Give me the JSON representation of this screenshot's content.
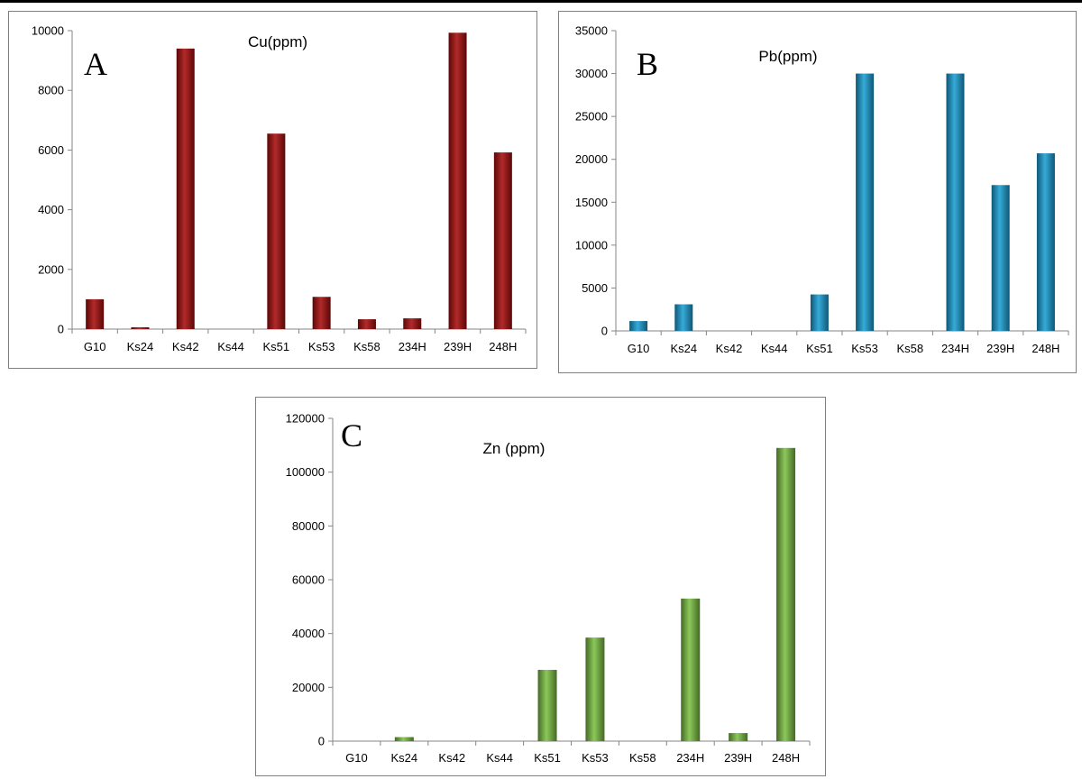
{
  "chart_data": [
    {
      "type": "bar",
      "panel_label": "A",
      "title": "Cu(ppm)",
      "categories": [
        "G10",
        "Ks24",
        "Ks42",
        "Ks44",
        "Ks51",
        "Ks53",
        "Ks58",
        "234H",
        "239H",
        "248H"
      ],
      "values": [
        1000,
        60,
        9400,
        0,
        6550,
        1080,
        330,
        360,
        9930,
        5920
      ],
      "ylim": [
        0,
        10000
      ],
      "yticks": [
        0,
        2000,
        4000,
        6000,
        8000,
        10000
      ],
      "grid": false,
      "legend": "none",
      "color": "#a80d0d"
    },
    {
      "type": "bar",
      "panel_label": "B",
      "title": "Pb(ppm)",
      "categories": [
        "G10",
        "Ks24",
        "Ks42",
        "Ks44",
        "Ks51",
        "Ks53",
        "Ks58",
        "234H",
        "239H",
        "248H"
      ],
      "values": [
        1150,
        3100,
        0,
        0,
        4250,
        30000,
        0,
        30000,
        17000,
        20700
      ],
      "ylim": [
        0,
        35000
      ],
      "yticks": [
        0,
        5000,
        10000,
        15000,
        20000,
        25000,
        30000,
        35000
      ],
      "grid": false,
      "legend": "none",
      "color": "#1b9fd4"
    },
    {
      "type": "bar",
      "panel_label": "C",
      "title": "Zn (ppm)",
      "categories": [
        "G10",
        "Ks24",
        "Ks42",
        "Ks44",
        "Ks51",
        "Ks53",
        "Ks58",
        "234H",
        "239H",
        "248H"
      ],
      "values": [
        0,
        1500,
        0,
        0,
        26500,
        38500,
        0,
        53000,
        3000,
        109000
      ],
      "ylim": [
        0,
        120000
      ],
      "yticks": [
        0,
        20000,
        40000,
        60000,
        80000,
        100000,
        120000
      ],
      "grid": false,
      "legend": "none",
      "color": "#7cc043"
    }
  ]
}
